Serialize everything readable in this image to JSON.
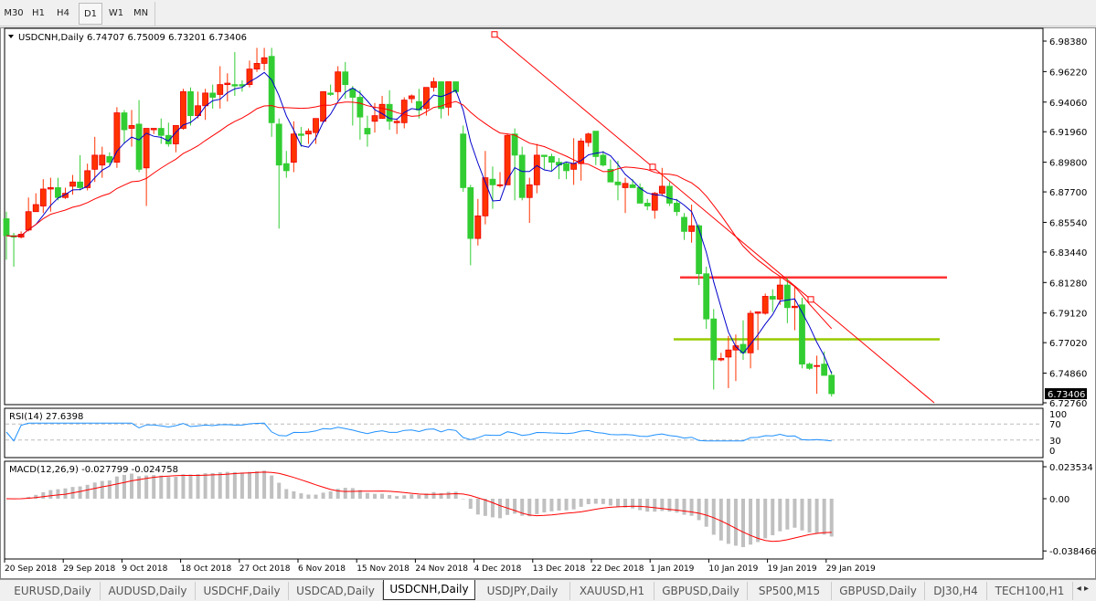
{
  "toolbar": {
    "timeframes": [
      "M30",
      "H1",
      "H4",
      "D1",
      "W1",
      "MN"
    ],
    "selected": "D1"
  },
  "chart": {
    "header": "USDCNH,Daily  6.74707 6.75009 6.73201 6.73406",
    "symbol": "USDCNH",
    "period": "Daily",
    "current_price": "6.73406",
    "price_axis": [
      "6.98380",
      "6.96220",
      "6.94060",
      "6.91960",
      "6.89800",
      "6.87700",
      "6.85540",
      "6.83440",
      "6.81280",
      "6.79120",
      "6.77020",
      "6.74860",
      "6.72760"
    ],
    "time_axis": [
      "20 Sep 2018",
      "29 Sep 2018",
      "9 Oct 2018",
      "18 Oct 2018",
      "27 Oct 2018",
      "6 Nov 2018",
      "15 Nov 2018",
      "24 Nov 2018",
      "4 Dec 2018",
      "13 Dec 2018",
      "22 Dec 2018",
      "1 Jan 2019",
      "10 Jan 2019",
      "19 Jan 2019",
      "29 Jan 2019"
    ],
    "colors": {
      "up": "#ff3300",
      "down": "#32cd32",
      "ma_fast": "#0000cc",
      "ma_slow": "#ff0000",
      "resistance": "#ff3333",
      "support": "#99cc00",
      "rsi": "#1e90ff",
      "macd_hist": "#c0c0c0",
      "macd_signal": "#ff0000"
    },
    "levels": {
      "resistance": 6.8164,
      "support": 6.7726
    },
    "trendline": [
      6.9885,
      6.7276
    ]
  },
  "chart_data": {
    "type": "candlestick",
    "ohlc": [
      [
        6.858,
        6.863,
        6.829,
        6.846
      ],
      [
        6.846,
        6.848,
        6.824,
        6.845
      ],
      [
        6.845,
        6.849,
        6.844,
        6.847
      ],
      [
        6.85,
        6.873,
        6.849,
        6.863
      ],
      [
        6.863,
        6.876,
        6.863,
        6.868
      ],
      [
        6.867,
        6.886,
        6.862,
        6.879
      ],
      [
        6.879,
        6.887,
        6.863,
        6.88
      ],
      [
        6.88,
        6.887,
        6.871,
        6.873
      ],
      [
        6.873,
        6.88,
        6.872,
        6.876
      ],
      [
        6.881,
        6.889,
        6.875,
        6.884
      ],
      [
        6.884,
        6.903,
        6.878,
        6.88
      ],
      [
        6.88,
        6.897,
        6.878,
        6.892
      ],
      [
        6.893,
        6.916,
        6.884,
        6.903
      ],
      [
        6.896,
        6.909,
        6.887,
        6.903
      ],
      [
        6.902,
        6.905,
        6.896,
        6.898
      ],
      [
        6.898,
        6.937,
        6.894,
        6.933
      ],
      [
        6.933,
        6.935,
        6.911,
        6.921
      ],
      [
        6.922,
        6.935,
        6.909,
        6.924
      ],
      [
        6.925,
        6.942,
        6.891,
        6.893
      ],
      [
        6.894,
        6.922,
        6.867,
        6.922
      ],
      [
        6.921,
        6.922,
        6.918,
        6.922
      ],
      [
        6.922,
        6.929,
        6.911,
        6.917
      ],
      [
        6.917,
        6.926,
        6.909,
        6.911
      ],
      [
        6.911,
        6.924,
        6.905,
        6.924
      ],
      [
        6.922,
        6.95,
        6.921,
        6.948
      ],
      [
        6.948,
        6.951,
        6.924,
        6.931
      ],
      [
        6.931,
        6.948,
        6.929,
        6.938
      ],
      [
        6.938,
        6.95,
        6.928,
        6.947
      ],
      [
        6.947,
        6.953,
        6.936,
        6.944
      ],
      [
        6.946,
        6.966,
        6.936,
        6.953
      ],
      [
        6.953,
        6.961,
        6.941,
        6.954
      ],
      [
        6.953,
        6.976,
        6.945,
        6.952
      ],
      [
        6.953,
        6.956,
        6.948,
        6.952
      ],
      [
        6.953,
        6.97,
        6.951,
        6.964
      ],
      [
        6.964,
        6.979,
        6.962,
        6.968
      ],
      [
        6.968,
        6.979,
        6.963,
        6.972
      ],
      [
        6.973,
        6.979,
        6.916,
        6.926
      ],
      [
        6.925,
        6.929,
        6.851,
        6.896
      ],
      [
        6.897,
        6.906,
        6.887,
        6.892
      ],
      [
        6.898,
        6.927,
        6.891,
        6.918
      ],
      [
        6.918,
        6.923,
        6.909,
        6.917
      ],
      [
        6.918,
        6.922,
        6.911,
        6.92
      ],
      [
        6.919,
        6.929,
        6.911,
        6.929
      ],
      [
        6.927,
        6.948,
        6.927,
        6.948
      ],
      [
        6.947,
        6.953,
        6.945,
        6.946
      ],
      [
        6.948,
        6.966,
        6.942,
        6.962
      ],
      [
        6.962,
        6.969,
        6.943,
        6.953
      ],
      [
        6.95,
        6.952,
        6.924,
        6.944
      ],
      [
        6.944,
        6.949,
        6.914,
        6.93
      ],
      [
        6.922,
        6.931,
        6.909,
        6.918
      ],
      [
        6.927,
        6.94,
        6.919,
        6.931
      ],
      [
        6.929,
        6.945,
        6.929,
        6.939
      ],
      [
        6.939,
        6.949,
        6.921,
        6.927
      ],
      [
        6.926,
        6.929,
        6.918,
        6.927
      ],
      [
        6.926,
        6.944,
        6.922,
        6.942
      ],
      [
        6.943,
        6.946,
        6.94,
        6.945
      ],
      [
        6.941,
        6.95,
        6.929,
        6.935
      ],
      [
        6.936,
        6.951,
        6.931,
        6.951
      ],
      [
        6.951,
        6.958,
        6.948,
        6.955
      ],
      [
        6.955,
        6.955,
        6.929,
        6.936
      ],
      [
        6.937,
        6.955,
        6.931,
        6.955
      ],
      [
        6.955,
        6.955,
        6.947,
        6.948
      ],
      [
        6.918,
        6.924,
        6.877,
        6.88
      ],
      [
        6.88,
        6.882,
        6.825,
        6.844
      ],
      [
        6.844,
        6.872,
        6.839,
        6.86
      ],
      [
        6.86,
        6.906,
        6.854,
        6.887
      ],
      [
        6.886,
        6.895,
        6.865,
        6.882
      ],
      [
        6.882,
        6.891,
        6.88,
        6.882
      ],
      [
        6.882,
        6.918,
        6.882,
        6.917
      ],
      [
        6.918,
        6.922,
        6.871,
        6.903
      ],
      [
        6.903,
        6.909,
        6.871,
        6.873
      ],
      [
        6.873,
        6.887,
        6.855,
        6.882
      ],
      [
        6.882,
        6.911,
        6.876,
        6.903
      ],
      [
        6.903,
        6.903,
        6.893,
        6.902
      ],
      [
        6.902,
        6.904,
        6.892,
        6.898
      ],
      [
        6.898,
        6.901,
        6.886,
        6.896
      ],
      [
        6.897,
        6.898,
        6.886,
        6.892
      ],
      [
        6.893,
        6.915,
        6.882,
        6.897
      ],
      [
        6.897,
        6.915,
        6.885,
        6.913
      ],
      [
        6.912,
        6.919,
        6.909,
        6.918
      ],
      [
        6.92,
        6.92,
        6.896,
        6.902
      ],
      [
        6.903,
        6.906,
        6.895,
        6.896
      ],
      [
        6.893,
        6.9,
        6.884,
        6.884
      ],
      [
        6.884,
        6.899,
        6.871,
        6.882
      ],
      [
        6.88,
        6.887,
        6.862,
        6.883
      ],
      [
        6.882,
        6.886,
        6.88,
        6.88
      ],
      [
        6.88,
        6.883,
        6.869,
        6.869
      ],
      [
        6.869,
        6.872,
        6.864,
        6.867
      ],
      [
        6.864,
        6.877,
        6.858,
        6.876
      ],
      [
        6.876,
        6.894,
        6.874,
        6.881
      ],
      [
        6.881,
        6.884,
        6.867,
        6.869
      ],
      [
        6.869,
        6.872,
        6.86,
        6.863
      ],
      [
        6.859,
        6.862,
        6.843,
        6.849
      ],
      [
        6.849,
        6.868,
        6.841,
        6.853
      ],
      [
        6.853,
        6.854,
        6.811,
        6.819
      ],
      [
        6.819,
        6.824,
        6.78,
        6.787
      ],
      [
        6.787,
        6.794,
        6.737,
        6.758
      ],
      [
        6.758,
        6.763,
        6.757,
        6.759
      ],
      [
        6.76,
        6.775,
        6.738,
        6.765
      ],
      [
        6.765,
        6.776,
        6.743,
        6.768
      ],
      [
        6.769,
        6.786,
        6.758,
        6.763
      ],
      [
        6.763,
        6.793,
        6.752,
        6.791
      ],
      [
        6.791,
        6.792,
        6.765,
        6.792
      ],
      [
        6.791,
        6.805,
        6.79,
        6.803
      ],
      [
        6.803,
        6.808,
        6.792,
        6.801
      ],
      [
        6.801,
        6.817,
        6.797,
        6.811
      ],
      [
        6.811,
        6.816,
        6.784,
        6.795
      ],
      [
        6.795,
        6.81,
        6.779,
        6.796
      ],
      [
        6.797,
        6.802,
        6.752,
        6.755
      ],
      [
        6.755,
        6.756,
        6.751,
        6.752
      ],
      [
        6.754,
        6.761,
        6.734,
        6.754
      ],
      [
        6.755,
        6.764,
        6.747,
        6.747
      ],
      [
        6.74707,
        6.75009,
        6.73201,
        6.73406
      ]
    ],
    "yrange": [
      6.7276,
      6.9838
    ],
    "indicators": {
      "rsi": {
        "label": "RSI(14) 27.6398",
        "levels": [
          "100",
          "70",
          "30",
          "0"
        ]
      },
      "macd": {
        "label": "MACD(12,26,9) -0.027799 -0.024758",
        "axis": [
          "0.023534",
          "0.00",
          "-0.038466"
        ]
      }
    }
  },
  "tabs": [
    "EURUSD,Daily",
    "AUDUSD,Daily",
    "USDCHF,Daily",
    "USDCAD,Daily",
    "USDCNH,Daily",
    "USDJPY,Daily",
    "XAUUSD,H1",
    "GBPUSD,Daily",
    "SP500,M15",
    "GBPUSD,Daily",
    "DJ30,H4",
    "TECH100,H1"
  ],
  "active_tab": "USDCNH,Daily",
  "tab_nav": "◂ ▸"
}
